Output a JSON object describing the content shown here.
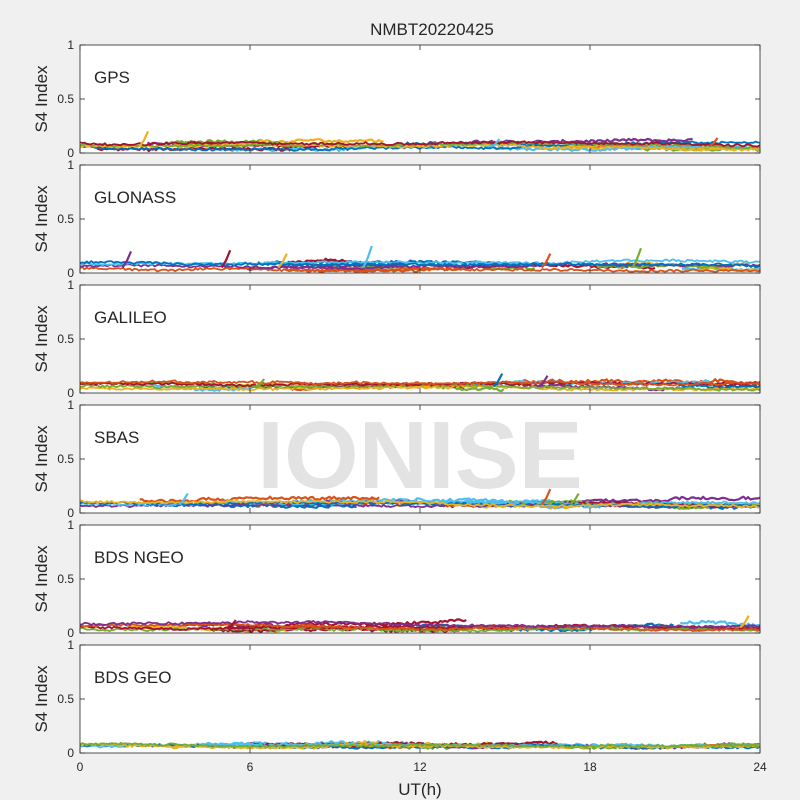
{
  "figure": {
    "title": "NMBT20220425",
    "xlabel": "UT(h)",
    "watermark": "IONISE"
  },
  "chart_data": {
    "type": "scatter",
    "title": "NMBT20220425",
    "xlabel": "UT(h)",
    "xlim": [
      0,
      24
    ],
    "x_ticks": [
      0,
      6,
      12,
      18,
      24
    ],
    "x_tick_labels": [
      "0",
      "6",
      "12",
      "18",
      "24"
    ],
    "y_ticks": [
      0,
      0.5,
      1
    ],
    "y_tick_labels": [
      "0",
      "0.5",
      "1"
    ],
    "ylim": [
      0,
      1
    ],
    "grid": false,
    "series_colors": [
      "#0072BD",
      "#D95319",
      "#EDB120",
      "#7E2F8E",
      "#77AC30",
      "#4DBEEE",
      "#A2142F"
    ],
    "panels": [
      {
        "label": "GPS",
        "ylabel": "S4 Index",
        "baseline_range": [
          0.03,
          0.12
        ],
        "max_value": 0.2,
        "spikes": [
          {
            "x": 2.4,
            "y": 0.2
          },
          {
            "x": 14.8,
            "y": 0.13
          },
          {
            "x": 22.5,
            "y": 0.14
          }
        ]
      },
      {
        "label": "GLONASS",
        "ylabel": "S4 Index",
        "baseline_range": [
          0.02,
          0.14
        ],
        "max_value": 0.25,
        "spikes": [
          {
            "x": 1.8,
            "y": 0.2
          },
          {
            "x": 5.3,
            "y": 0.21
          },
          {
            "x": 7.3,
            "y": 0.18
          },
          {
            "x": 10.3,
            "y": 0.25
          },
          {
            "x": 16.6,
            "y": 0.18
          },
          {
            "x": 19.8,
            "y": 0.23
          }
        ]
      },
      {
        "label": "GALILEO",
        "ylabel": "S4 Index",
        "baseline_range": [
          0.03,
          0.13
        ],
        "max_value": 0.18,
        "spikes": [
          {
            "x": 6.5,
            "y": 0.13
          },
          {
            "x": 14.9,
            "y": 0.18
          },
          {
            "x": 16.5,
            "y": 0.16
          }
        ]
      },
      {
        "label": "SBAS",
        "ylabel": "S4 Index",
        "baseline_range": [
          0.05,
          0.14
        ],
        "max_value": 0.22,
        "spikes": [
          {
            "x": 3.8,
            "y": 0.18
          },
          {
            "x": 16.6,
            "y": 0.22
          },
          {
            "x": 17.6,
            "y": 0.18
          }
        ]
      },
      {
        "label": "BDS NGEO",
        "ylabel": "S4 Index",
        "baseline_range": [
          0.02,
          0.12
        ],
        "max_value": 0.16,
        "spikes": [
          {
            "x": 5.5,
            "y": 0.12
          },
          {
            "x": 23.6,
            "y": 0.16
          }
        ]
      },
      {
        "label": "BDS GEO",
        "ylabel": "S4 Index",
        "baseline_range": [
          0.05,
          0.1
        ],
        "max_value": 0.11,
        "spikes": []
      }
    ]
  }
}
